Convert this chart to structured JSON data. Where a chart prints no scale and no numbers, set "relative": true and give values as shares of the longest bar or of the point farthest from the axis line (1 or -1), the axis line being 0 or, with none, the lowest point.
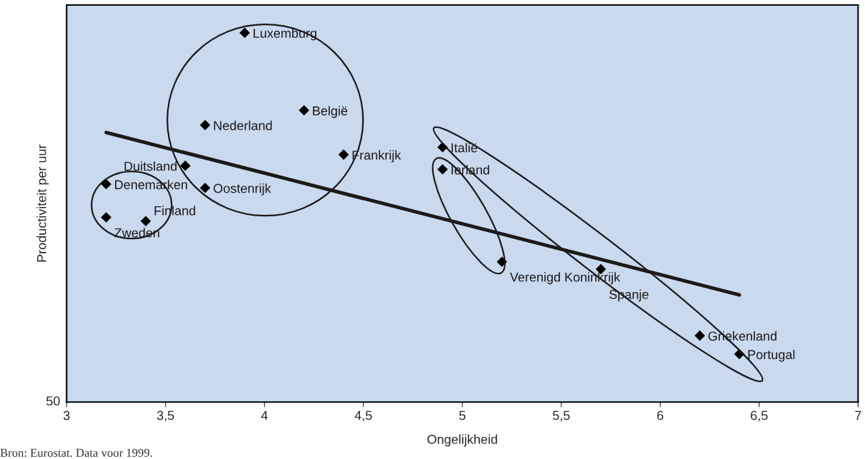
{
  "chart_data": {
    "type": "scatter",
    "relative": true,
    "xlabel": "Ongelijkheid",
    "ylabel": "Productiviteit per uur",
    "xlim": [
      3,
      7
    ],
    "xticks": [
      3,
      {
        "value": 3.5,
        "label": "3,5"
      },
      4,
      {
        "value": 4.5,
        "label": "4,5"
      },
      5,
      {
        "value": 5.5,
        "label": "5,5"
      },
      6,
      {
        "value": 6.5,
        "label": "6,5"
      },
      7
    ],
    "marker": "diamond",
    "grid": false,
    "legend": false,
    "annotations": [
      "Bron: Eurostat. Data voor 1999.",
      "50"
    ],
    "series": [
      {
        "name": "Luxemburg",
        "color": "#000000",
        "x": [
          3.9
        ],
        "values": [
          1.0
        ]
      },
      {
        "name": "België",
        "color": "#000000",
        "x": [
          4.2
        ],
        "values": [
          0.79
        ]
      },
      {
        "name": "Nederland",
        "color": "#000000",
        "x": [
          3.7
        ],
        "values": [
          0.75
        ]
      },
      {
        "name": "Frankrijk",
        "color": "#000000",
        "x": [
          4.4
        ],
        "values": [
          0.67
        ]
      },
      {
        "name": "Italië",
        "color": "#000000",
        "x": [
          4.9
        ],
        "values": [
          0.69
        ]
      },
      {
        "name": "Ierland",
        "color": "#000000",
        "x": [
          4.9
        ],
        "values": [
          0.63
        ]
      },
      {
        "name": "Duitsland",
        "color": "#000000",
        "x": [
          3.6
        ],
        "values": [
          0.64
        ]
      },
      {
        "name": "Denemarken",
        "color": "#000000",
        "x": [
          3.2
        ],
        "values": [
          0.59
        ]
      },
      {
        "name": "Oostenrijk",
        "color": "#000000",
        "x": [
          3.7
        ],
        "values": [
          0.58
        ]
      },
      {
        "name": "Zweden",
        "color": "#000000",
        "x": [
          3.2
        ],
        "values": [
          0.5
        ]
      },
      {
        "name": "Finland",
        "color": "#000000",
        "x": [
          3.4
        ],
        "values": [
          0.49
        ]
      },
      {
        "name": "Verenigd Koninkrijk",
        "color": "#000000",
        "x": [
          5.2
        ],
        "values": [
          0.38
        ]
      },
      {
        "name": "Spanje",
        "color": "#000000",
        "x": [
          5.7
        ],
        "values": [
          0.36
        ]
      },
      {
        "name": "Griekenland",
        "color": "#000000",
        "x": [
          6.2
        ],
        "values": [
          0.18
        ]
      },
      {
        "name": "Portugal",
        "color": "#000000",
        "x": [
          6.4
        ],
        "values": [
          0.13
        ]
      },
      {
        "type": "line",
        "marker": "none",
        "color": "#1a1a1a",
        "x": [
          3.2,
          6.4
        ],
        "values": [
          0.73,
          0.29
        ]
      }
    ]
  }
}
